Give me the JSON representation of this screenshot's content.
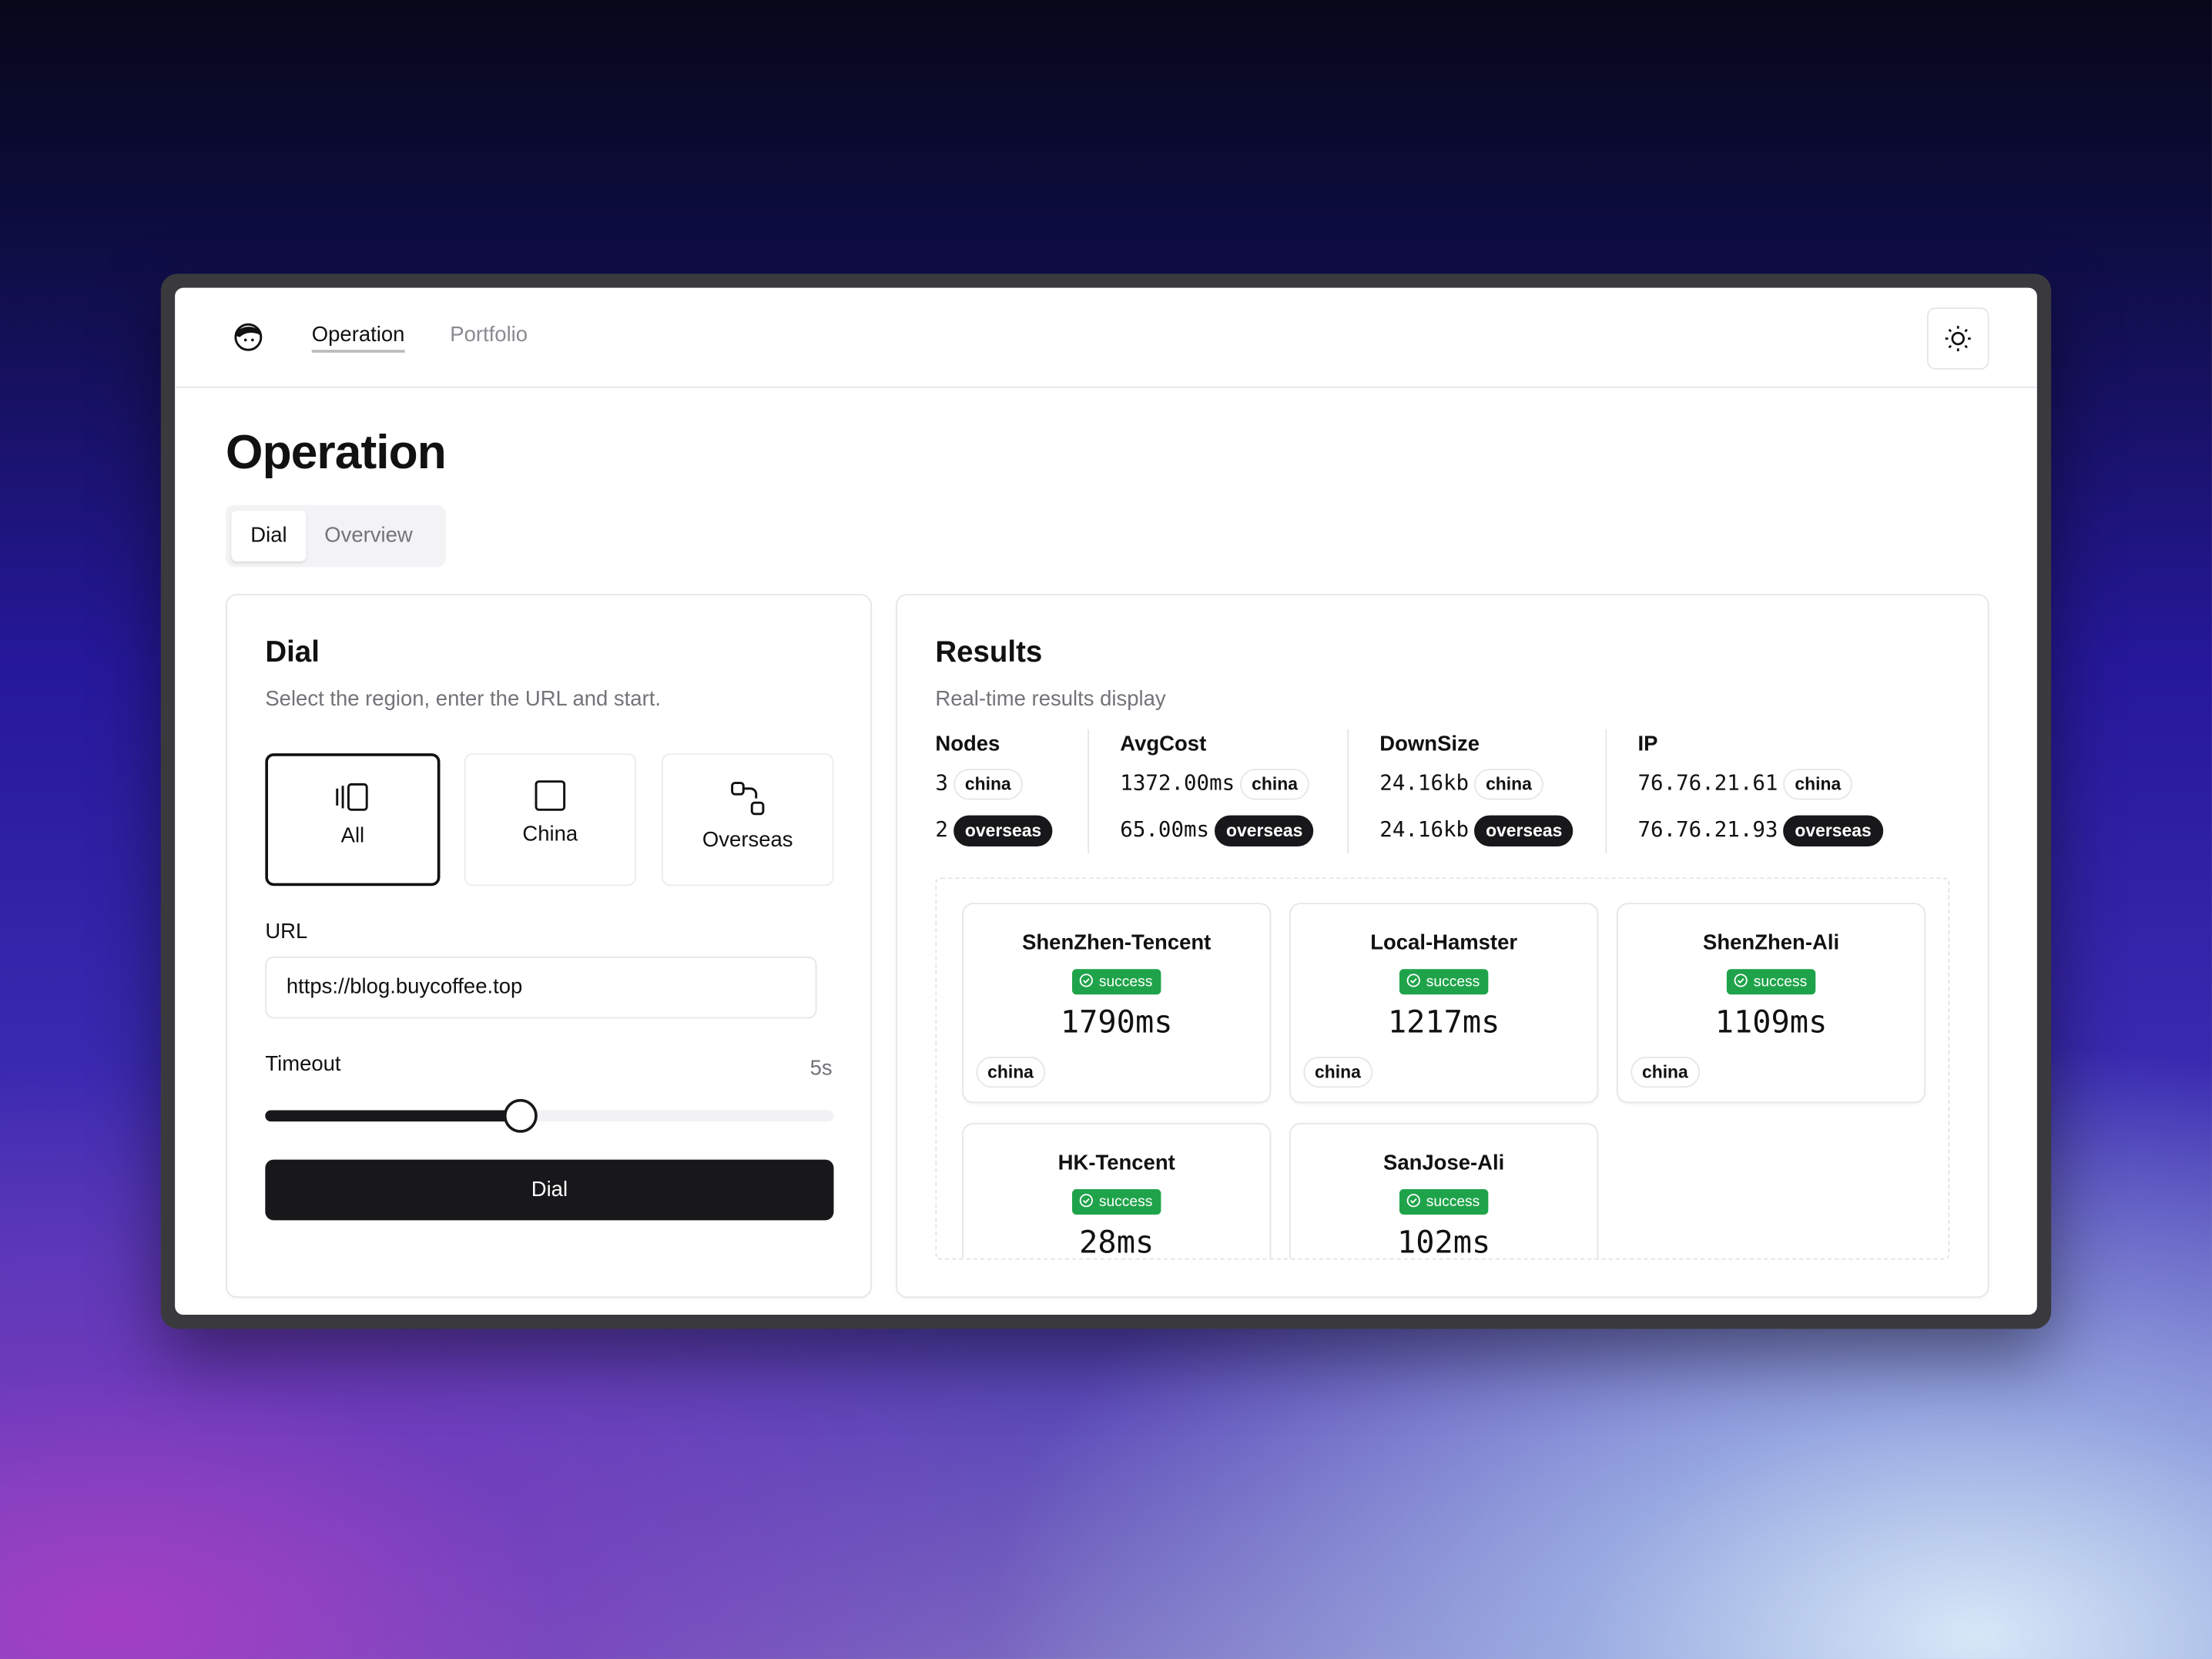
{
  "nav": {
    "links": [
      "Operation",
      "Portfolio"
    ]
  },
  "page": {
    "title": "Operation",
    "tabs": [
      "Dial",
      "Overview"
    ]
  },
  "dial": {
    "title": "Dial",
    "description": "Select the region, enter the URL and start.",
    "regions": [
      "All",
      "China",
      "Overseas"
    ],
    "url_label": "URL",
    "url_value": "https://blog.buycoffee.top",
    "timeout_label": "Timeout",
    "timeout_value": "5s",
    "button": "Dial"
  },
  "results": {
    "title": "Results",
    "description": "Real-time results display",
    "stats": [
      {
        "header": "Nodes",
        "rows": [
          {
            "value": "3",
            "tag": "china"
          },
          {
            "value": "2",
            "tag": "overseas"
          }
        ]
      },
      {
        "header": "AvgCost",
        "rows": [
          {
            "value": "1372.00ms",
            "tag": "china"
          },
          {
            "value": "65.00ms",
            "tag": "overseas"
          }
        ]
      },
      {
        "header": "DownSize",
        "rows": [
          {
            "value": "24.16kb",
            "tag": "china"
          },
          {
            "value": "24.16kb",
            "tag": "overseas"
          }
        ]
      },
      {
        "header": "IP",
        "rows": [
          {
            "value": "76.76.21.61",
            "tag": "china"
          },
          {
            "value": "76.76.21.93",
            "tag": "overseas"
          }
        ]
      }
    ],
    "nodes": [
      {
        "name": "ShenZhen-Tencent",
        "status": "success",
        "time": "1790ms",
        "region": "china"
      },
      {
        "name": "Local-Hamster",
        "status": "success",
        "time": "1217ms",
        "region": "china"
      },
      {
        "name": "ShenZhen-Ali",
        "status": "success",
        "time": "1109ms",
        "region": "china"
      },
      {
        "name": "HK-Tencent",
        "status": "success",
        "time": "28ms"
      },
      {
        "name": "SanJose-Ali",
        "status": "success",
        "time": "102ms"
      }
    ]
  }
}
